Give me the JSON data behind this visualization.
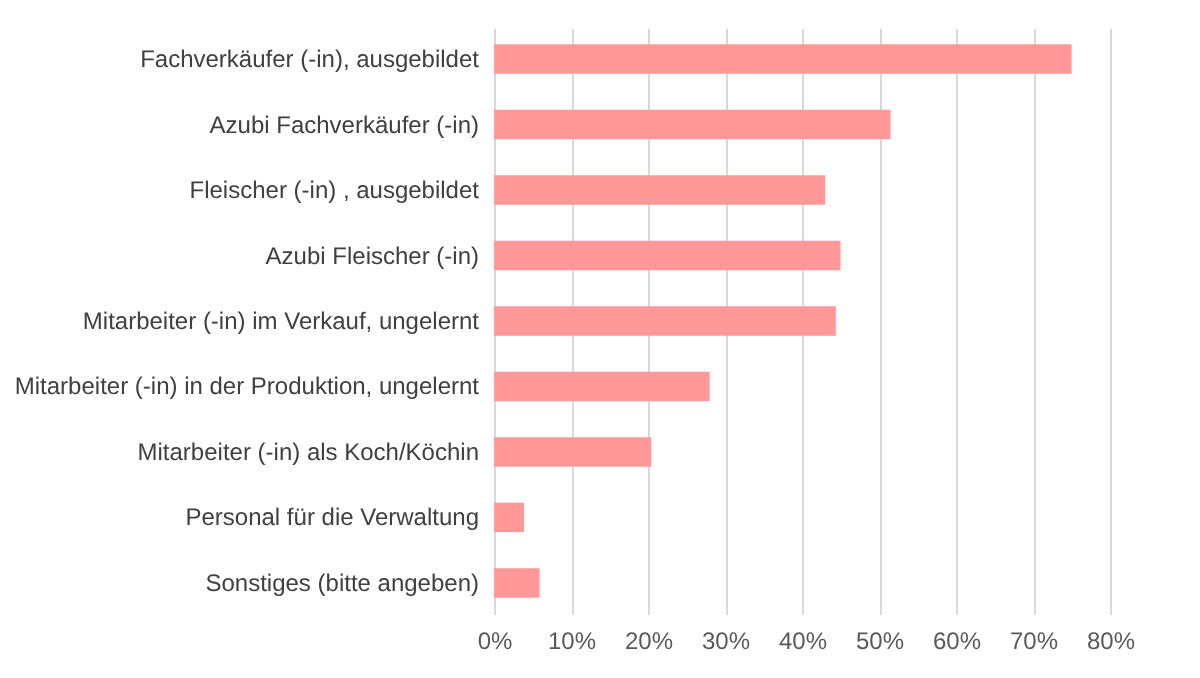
{
  "chart_data": {
    "type": "bar",
    "orientation": "horizontal",
    "categories": [
      "Fachverkäufer (-in), ausgebildet",
      "Azubi Fachverkäufer (-in)",
      "Fleischer (-in) , ausgebildet",
      "Azubi Fleischer (-in)",
      "Mitarbeiter (-in) im Verkauf, ungelernt",
      "Mitarbeiter (-in) in der Produktion, ungelernt",
      "Mitarbeiter (-in) als Koch/Köchin",
      "Personal für die Verwaltung",
      "Sonstiges (bitte angeben)"
    ],
    "values": [
      75,
      51.5,
      43,
      45,
      44.4,
      28,
      20.4,
      3.9,
      5.9
    ],
    "color": "#ff9999",
    "xlim": [
      0,
      80
    ],
    "xticks": [
      {
        "value": 0,
        "label": "0%"
      },
      {
        "value": 10,
        "label": "10%"
      },
      {
        "value": 20,
        "label": "20%"
      },
      {
        "value": 30,
        "label": "30%"
      },
      {
        "value": 40,
        "label": "40%"
      },
      {
        "value": 50,
        "label": "50%"
      },
      {
        "value": 60,
        "label": "60%"
      },
      {
        "value": 70,
        "label": "70%"
      },
      {
        "value": 80,
        "label": "80%"
      }
    ],
    "grid": "x"
  }
}
